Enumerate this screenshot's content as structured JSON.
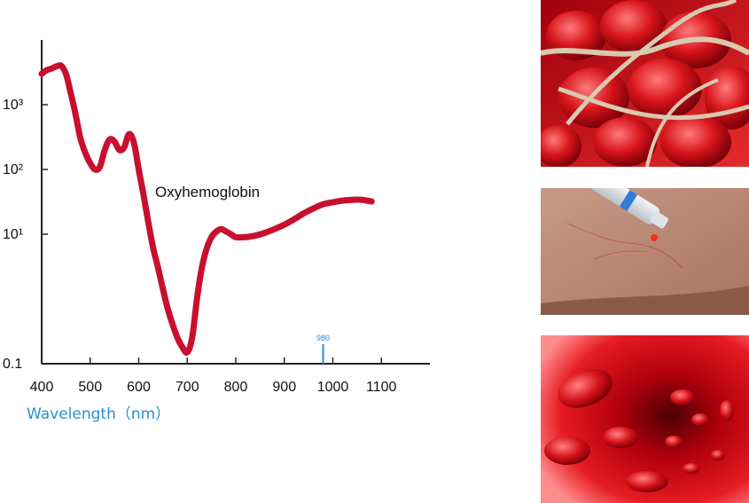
{
  "chart_data": {
    "type": "line",
    "title": "",
    "xlabel": "Wavelength（nm）",
    "ylabel": "",
    "x_ticks": [
      "400",
      "500",
      "600",
      "700",
      "800",
      "900",
      "1000",
      "1100"
    ],
    "y_ticks": [
      {
        "value": 0.1,
        "label": "0.1"
      },
      {
        "value": 10,
        "label": "10¹"
      },
      {
        "value": 100,
        "label": "10²"
      },
      {
        "value": 1000,
        "label": "10³"
      }
    ],
    "xlim": [
      400,
      1200
    ],
    "ylim": [
      0.1,
      10000
    ],
    "y_scale": "log",
    "grid": false,
    "marker": {
      "x": 980,
      "label": "980"
    },
    "series": [
      {
        "name": "Oxyhemoglobin",
        "color": "#c8102e",
        "x": [
          400,
          410,
          420,
          430,
          440,
          450,
          460,
          470,
          480,
          490,
          500,
          510,
          520,
          530,
          540,
          550,
          560,
          570,
          580,
          590,
          600,
          610,
          620,
          630,
          640,
          650,
          660,
          670,
          680,
          690,
          700,
          710,
          720,
          730,
          740,
          750,
          760,
          770,
          780,
          790,
          800,
          820,
          840,
          860,
          880,
          900,
          920,
          940,
          960,
          980,
          1000,
          1020,
          1040,
          1060,
          1080
        ],
        "y": [
          3000,
          3400,
          3600,
          3900,
          4000,
          3000,
          1500,
          700,
          300,
          180,
          125,
          100,
          110,
          200,
          290,
          270,
          200,
          220,
          350,
          260,
          100,
          40,
          15,
          6,
          3,
          1.4,
          0.7,
          0.4,
          0.25,
          0.18,
          0.15,
          0.25,
          1.0,
          3.0,
          6.0,
          9.0,
          11,
          12,
          11,
          10,
          9,
          9,
          9.5,
          10.5,
          12,
          14,
          17,
          21,
          25,
          29,
          31,
          33,
          34,
          34,
          32
        ]
      }
    ]
  }
}
